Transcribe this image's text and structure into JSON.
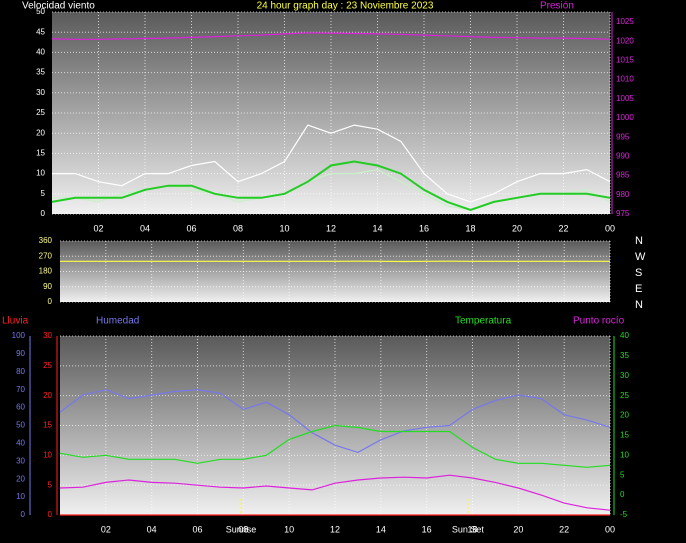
{
  "chart_data": [
    {
      "type": "line",
      "title": "24 hour graph day : 23 Noviembre 2023",
      "y_label": "Velocidad viento",
      "y2_label": "Presión",
      "x": [
        0,
        1,
        2,
        3,
        4,
        5,
        6,
        7,
        8,
        9,
        10,
        11,
        12,
        13,
        14,
        15,
        16,
        17,
        18,
        19,
        20,
        21,
        22,
        23,
        24
      ],
      "xlim": [
        0,
        24
      ],
      "xticks": [
        {
          "value": 2,
          "label": "02"
        },
        {
          "value": 4,
          "label": "04"
        },
        {
          "value": 6,
          "label": "06"
        },
        {
          "value": 8,
          "label": "08"
        },
        10,
        12,
        14,
        16,
        18,
        20,
        22,
        {
          "value": 24,
          "label": "00"
        }
      ],
      "ylim": [
        0,
        50
      ],
      "yticks": [
        0,
        5,
        10,
        15,
        20,
        25,
        30,
        35,
        40,
        45,
        50
      ],
      "y2lim": [
        975,
        1025
      ],
      "y2ticks": [
        975,
        980,
        985,
        990,
        995,
        1000,
        1005,
        1010,
        1015,
        1020,
        1025
      ],
      "grid": true,
      "series": [
        {
          "color": "#ffffff",
          "values": [
            10,
            10,
            8,
            7,
            10,
            10,
            12,
            13,
            8,
            10,
            13,
            22,
            20,
            22,
            21,
            18,
            10,
            5,
            3,
            5,
            8,
            10,
            10,
            11,
            8
          ]
        },
        {
          "color": "#c8f0c8",
          "values": [
            4,
            4,
            3,
            5,
            6,
            7,
            6,
            5,
            3,
            4,
            5,
            8,
            10,
            10,
            11,
            8,
            5,
            2,
            1,
            3,
            4,
            5,
            5,
            6,
            3
          ]
        },
        {
          "color": "#22cc22",
          "values": [
            3,
            4,
            4,
            4,
            6,
            7,
            7,
            5,
            4,
            4,
            5,
            8,
            12,
            13,
            12,
            10,
            6,
            3,
            1,
            3,
            4,
            5,
            5,
            5,
            4
          ]
        },
        {
          "color": "#dd22dd",
          "axis": "y2",
          "values": [
            1020.6,
            1020.5,
            1020.5,
            1020.6,
            1020.7,
            1020.8,
            1021,
            1021.2,
            1021.4,
            1021.6,
            1021.9,
            1022.2,
            1022.1,
            1022,
            1021.9,
            1021.8,
            1021.6,
            1021.4,
            1021.2,
            1021,
            1020.9,
            1020.8,
            1020.8,
            1020.7,
            1020.5
          ]
        }
      ]
    },
    {
      "type": "line",
      "x": [
        0,
        1,
        2,
        3,
        4,
        5,
        6,
        7,
        8,
        9,
        10,
        11,
        12,
        13,
        14,
        15,
        16,
        17,
        18,
        19,
        20,
        21,
        22,
        23,
        24
      ],
      "xlim": [
        0,
        24
      ],
      "xticks": [
        {
          "value": 2,
          "label": "02"
        },
        {
          "value": 4,
          "label": "04"
        },
        {
          "value": 6,
          "label": "06"
        },
        {
          "value": 8,
          "label": "08"
        },
        10,
        12,
        14,
        16,
        18,
        20,
        22,
        {
          "value": 24,
          "label": "00"
        }
      ],
      "ylim": [
        0,
        360
      ],
      "yticks": [
        0,
        90,
        180,
        270,
        360
      ],
      "grid": true,
      "compass": [
        "N",
        "W",
        "S",
        "E",
        "N"
      ],
      "series": [
        {
          "color": "#ffff44",
          "values": [
            240,
            240,
            240,
            240,
            240,
            240,
            240,
            240,
            240,
            240,
            240,
            240,
            240,
            241,
            240,
            239,
            240,
            241,
            240,
            240,
            240,
            240,
            240,
            240,
            240
          ]
        }
      ]
    },
    {
      "type": "line",
      "x": [
        0,
        1,
        2,
        3,
        4,
        5,
        6,
        7,
        8,
        9,
        10,
        11,
        12,
        13,
        14,
        15,
        16,
        17,
        18,
        19,
        20,
        21,
        22,
        23,
        24
      ],
      "xlim": [
        0,
        24
      ],
      "xticks": [
        {
          "value": 2,
          "label": "02"
        },
        {
          "value": 4,
          "label": "04"
        },
        {
          "value": 6,
          "label": "06"
        },
        {
          "value": 8,
          "label": "08"
        },
        10,
        12,
        14,
        16,
        18,
        20,
        22,
        {
          "value": 24,
          "label": "00"
        }
      ],
      "ylim": [
        0,
        30
      ],
      "yticks": [
        0,
        5,
        10,
        15,
        20,
        25,
        30
      ],
      "y2lim": [
        -5,
        40
      ],
      "y2ticks": [
        -5,
        0,
        5,
        10,
        15,
        20,
        25,
        30,
        35,
        40
      ],
      "y3lim": [
        0,
        100
      ],
      "y3ticks": [
        0,
        10,
        20,
        30,
        40,
        50,
        60,
        70,
        80,
        90,
        100
      ],
      "grid": true,
      "annotations": [
        {
          "label": "Sunrise",
          "x": 7.9
        },
        {
          "label": "Sun Set",
          "x": 17.8
        }
      ],
      "series": [
        {
          "name": "Lluvia",
          "color": "#ff2222",
          "values": [
            0,
            0,
            0,
            0,
            0,
            0,
            0,
            0,
            0,
            0,
            0,
            0,
            0,
            0,
            0,
            0,
            0,
            0,
            0,
            0,
            0,
            0,
            0,
            0,
            0
          ]
        },
        {
          "name": "Humedad",
          "color": "#7777ee",
          "axis": "y3",
          "values": [
            57.5,
            67,
            70,
            65,
            67,
            69,
            70,
            68,
            59,
            63,
            56,
            46,
            39,
            35,
            42,
            47,
            49,
            50,
            59,
            64,
            67,
            65,
            56,
            53,
            49
          ]
        },
        {
          "name": "Temperatura",
          "color": "#22dd22",
          "axis": "y2",
          "values": [
            10.5,
            9.5,
            10,
            9,
            9,
            9,
            8,
            9,
            9,
            10,
            14,
            16,
            17.5,
            17,
            16,
            16,
            16,
            16,
            12,
            9,
            8,
            8,
            7.5,
            7,
            7.5
          ]
        },
        {
          "name": "Punto rocío",
          "color": "#dd22dd",
          "axis": "y2",
          "values": [
            1.8,
            2,
            3.2,
            3.8,
            3.2,
            3,
            2.5,
            2,
            1.8,
            2.3,
            1.8,
            1.3,
            3,
            3.8,
            4.3,
            4.5,
            4.3,
            5,
            4.3,
            3.2,
            1.8,
            0,
            -2,
            -3.2,
            -3.8
          ]
        }
      ]
    }
  ]
}
